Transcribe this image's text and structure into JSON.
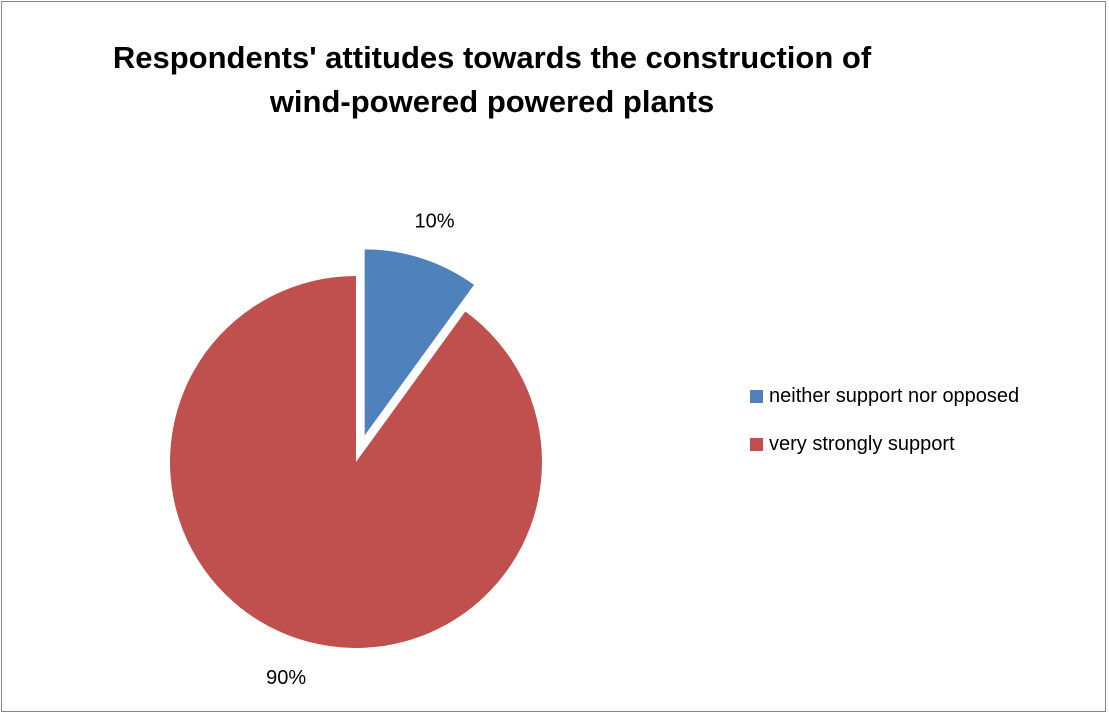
{
  "chart_data": {
    "type": "pie",
    "title": [
      "Respondents' attitudes towards the construction of",
      "wind-powered powered plants"
    ],
    "slices": [
      {
        "name": "neither support nor opposed",
        "value": 10,
        "label": "10%",
        "color": "#4F81BD"
      },
      {
        "name": "very strongly support",
        "value": 90,
        "label": "90%",
        "color": "#C0504D"
      }
    ],
    "exploded_slice": "neither support nor opposed",
    "legend_position": "right"
  }
}
